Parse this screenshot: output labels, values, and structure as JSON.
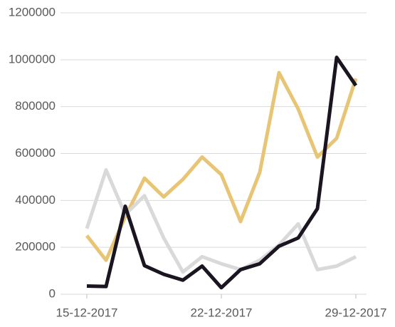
{
  "chart_data": {
    "type": "line",
    "categories": [
      "15-12-2017",
      null,
      null,
      null,
      null,
      null,
      null,
      "22-12-2017",
      null,
      null,
      null,
      null,
      null,
      null,
      "29-12-2017"
    ],
    "series": [
      {
        "color": "#e8c475",
        "values": [
          250000,
          145000,
          330000,
          495000,
          415000,
          490000,
          585000,
          510000,
          310000,
          520000,
          945000,
          790000,
          585000,
          665000,
          920000
        ]
      },
      {
        "color": "#d9d9d9",
        "values": [
          280000,
          530000,
          340000,
          420000,
          240000,
          95000,
          160000,
          130000,
          105000,
          145000,
          210000,
          300000,
          105000,
          120000,
          160000
        ]
      },
      {
        "color": "#1a1520",
        "values": [
          35000,
          33000,
          375000,
          122000,
          85000,
          60000,
          120000,
          28000,
          105000,
          130000,
          205000,
          240000,
          365000,
          1010000,
          890000
        ]
      }
    ],
    "ylim": [
      0,
      1200000
    ],
    "yticks": [
      0,
      200000,
      400000,
      600000,
      800000,
      1000000,
      1200000
    ],
    "grid": true
  }
}
